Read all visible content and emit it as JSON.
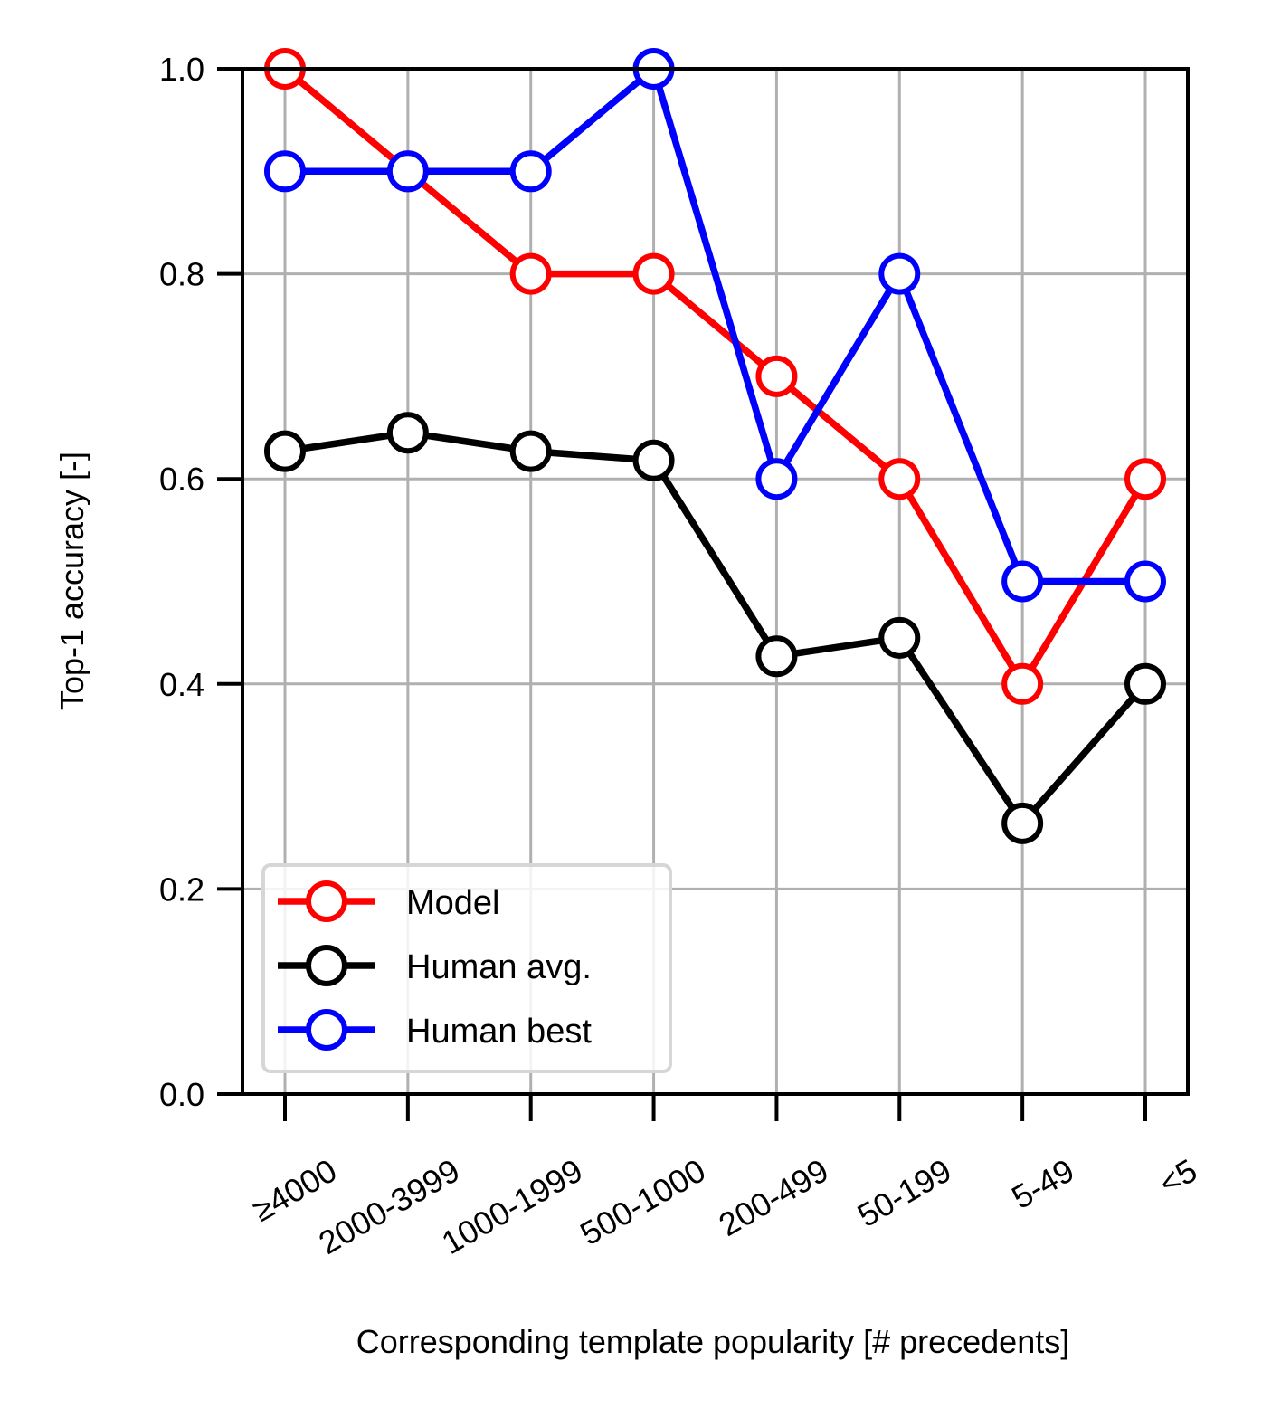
{
  "chart_data": {
    "type": "line",
    "categories": [
      "≥4000",
      "2000-3999",
      "1000-1999",
      "500-1000",
      "200-499",
      "50-199",
      "5-49",
      "<5"
    ],
    "series": [
      {
        "name": "Model",
        "color": "#ff0000",
        "values": [
          1.0,
          0.9,
          0.8,
          0.8,
          0.7,
          0.6,
          0.4,
          0.6
        ]
      },
      {
        "name": "Human avg.",
        "color": "#000000",
        "values": [
          0.627,
          0.645,
          0.627,
          0.618,
          0.427,
          0.445,
          0.264,
          0.4
        ]
      },
      {
        "name": "Human best",
        "color": "#0000ff",
        "values": [
          0.9,
          0.9,
          0.9,
          1.0,
          0.6,
          0.8,
          0.5,
          0.5
        ]
      }
    ],
    "xlabel": "Corresponding template popularity [# precedents]",
    "ylabel": "Top-1 accuracy [-]",
    "ylim": [
      0.0,
      1.0
    ],
    "yticks": [
      "0.0",
      "0.2",
      "0.4",
      "0.6",
      "0.8",
      "1.0"
    ],
    "grid": true,
    "legend_position": "lower-left",
    "marker": "hollow-circle"
  }
}
